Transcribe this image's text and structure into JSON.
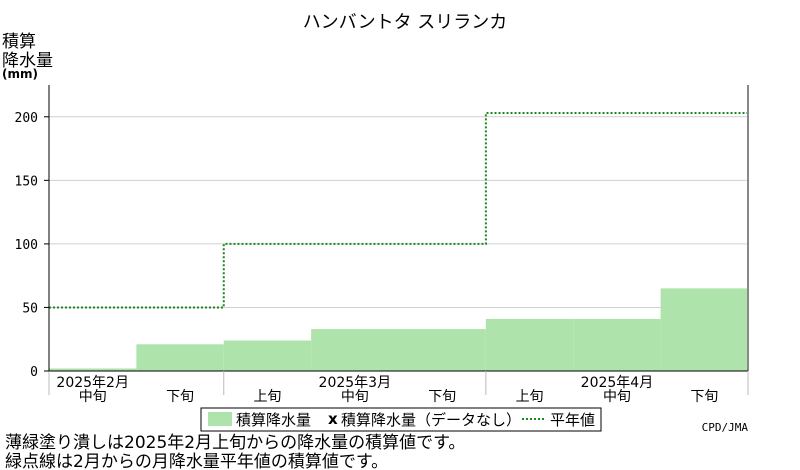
{
  "chart_data": {
    "type": "area",
    "title": "ハンバントタ スリランカ",
    "ylabel_lines": [
      "積算",
      "降水量"
    ],
    "yunit": "(mm)",
    "ylim": [
      0,
      225
    ],
    "yticks": [
      0,
      50,
      100,
      150,
      200
    ],
    "grid": true,
    "periods": [
      {
        "month": "2025年2月",
        "dekad": "中旬"
      },
      {
        "month": "",
        "dekad": "下旬"
      },
      {
        "month": "",
        "dekad": "上旬"
      },
      {
        "month": "2025年3月",
        "dekad": "中旬"
      },
      {
        "month": "",
        "dekad": "下旬"
      },
      {
        "month": "",
        "dekad": "上旬"
      },
      {
        "month": "2025年4月",
        "dekad": "中旬"
      },
      {
        "month": "",
        "dekad": "下旬"
      }
    ],
    "series": [
      {
        "name": "積算降水量",
        "style": "filled",
        "color": "#aee4ab",
        "values": [
          2,
          21,
          24,
          33,
          33,
          41,
          41,
          65
        ]
      },
      {
        "name": "積算降水量（データなし）",
        "style": "cross",
        "color": "#000000",
        "values": []
      },
      {
        "name": "平年値",
        "style": "dotted",
        "color": "#1a8a1a",
        "values": [
          50,
          50,
          100,
          100,
          100,
          203,
          203,
          203
        ]
      }
    ],
    "legend_position": "bottom"
  },
  "notes": [
    "薄緑塗り潰しは2025年2月上旬からの降水量の積算値です。",
    "緑点線は2月からの月降水量平年値の積算値です。"
  ],
  "credit": "CPD/JMA"
}
